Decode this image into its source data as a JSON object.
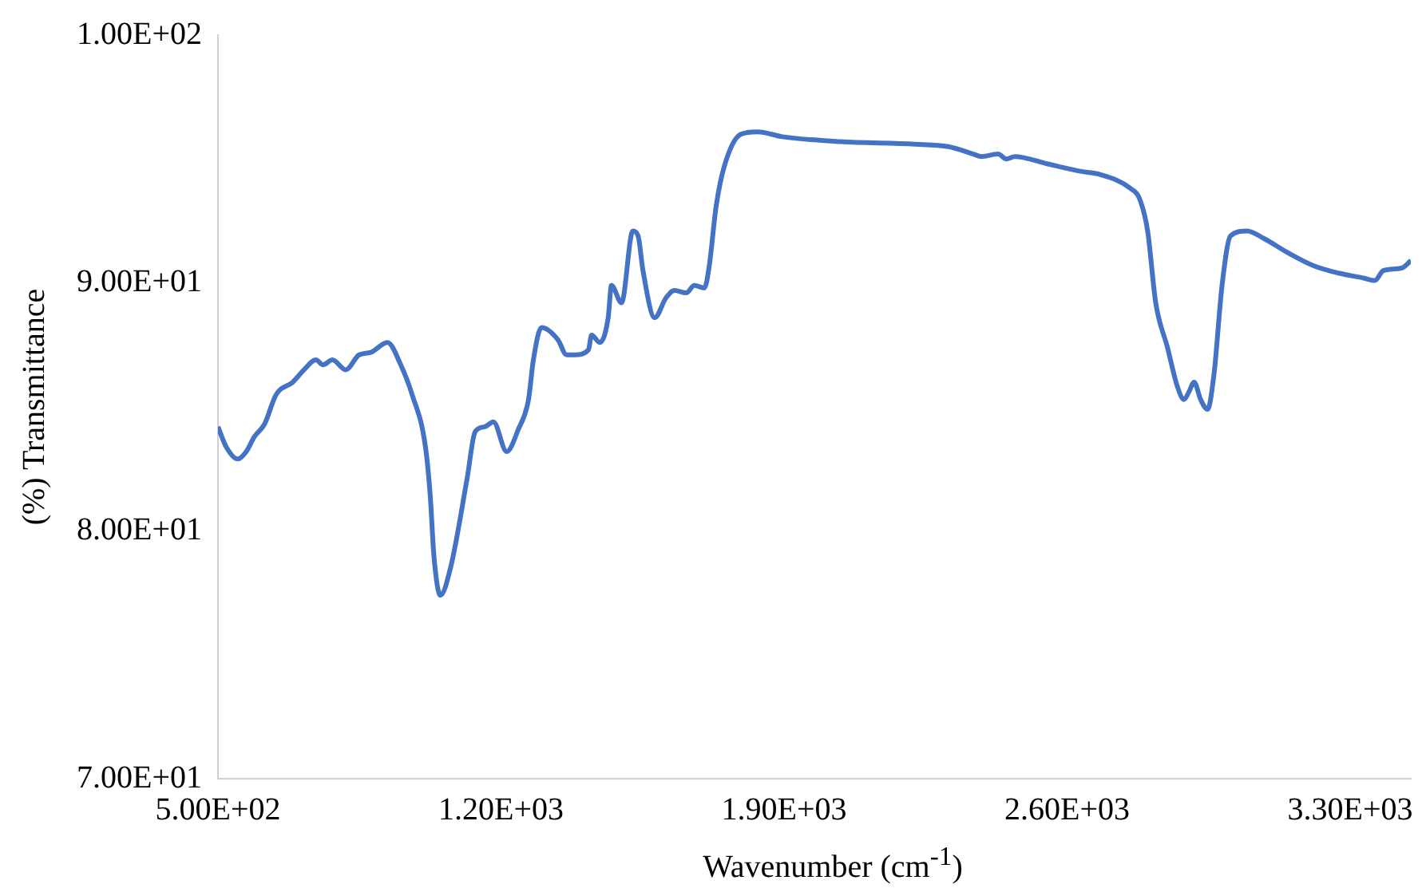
{
  "chart_data": {
    "type": "line",
    "xlabel": "Wavenumber (cm$^{-1}$)",
    "ylabel": "(%) Transmittance",
    "x": [
      500,
      520,
      549,
      570,
      590,
      615,
      644,
      685,
      713,
      742,
      760,
      783,
      816,
      849,
      878,
      919,
      952,
      980,
      1013,
      1025,
      1034,
      1050,
      1075,
      1116,
      1136,
      1160,
      1181,
      1214,
      1243,
      1268,
      1280,
      1300,
      1341,
      1362,
      1383,
      1416,
      1424,
      1444,
      1465,
      1473,
      1498,
      1526,
      1539,
      1551,
      1580,
      1608,
      1629,
      1658,
      1678,
      1703,
      1715,
      1732,
      1752,
      1793,
      1834,
      1896,
      2039,
      2224,
      2306,
      2368,
      2388,
      2429,
      2450,
      2470,
      2552,
      2635,
      2676,
      2758,
      2779,
      2799,
      2819,
      2848,
      2873,
      2889,
      2901,
      2914,
      2930,
      2947,
      2963,
      2983,
      3004,
      3045,
      3086,
      3148,
      3209,
      3271,
      3333,
      3361,
      3382,
      3427,
      3450
    ],
    "series": [
      {
        "color": "#4472c4",
        "values": [
          84.2,
          83.4,
          82.9,
          83.2,
          83.8,
          84.3,
          85.5,
          86.0,
          86.5,
          86.9,
          86.7,
          86.9,
          86.5,
          87.1,
          87.2,
          87.6,
          86.7,
          85.5,
          83.4,
          81.4,
          79.0,
          77.4,
          78.5,
          82.1,
          84.0,
          84.2,
          84.4,
          83.2,
          84.1,
          85.3,
          86.9,
          88.2,
          87.7,
          87.1,
          87.1,
          87.3,
          87.9,
          87.6,
          88.6,
          89.9,
          89.2,
          92.1,
          91.9,
          90.5,
          88.6,
          89.4,
          89.7,
          89.6,
          89.9,
          89.8,
          90.7,
          93.1,
          94.7,
          96.0,
          96.1,
          95.9,
          95.7,
          95.6,
          95.5,
          95.2,
          95.1,
          95.2,
          95.0,
          95.1,
          94.8,
          94.5,
          94.4,
          93.8,
          93.4,
          92.1,
          89.2,
          87.4,
          85.8,
          85.3,
          85.6,
          86.0,
          85.3,
          84.9,
          86.3,
          89.9,
          91.9,
          92.1,
          91.8,
          91.2,
          90.7,
          90.4,
          90.2,
          90.1,
          90.5,
          90.6,
          90.9
        ]
      }
    ],
    "xlim": [
      500,
      3450
    ],
    "xticks": [
      {
        "value": 500,
        "label": "5.00E+02"
      },
      {
        "value": 1200,
        "label": "1.20E+03"
      },
      {
        "value": 1900,
        "label": "1.90E+03"
      },
      {
        "value": 2600,
        "label": "2.60E+03"
      },
      {
        "value": 3300,
        "label": "3.30E+03"
      }
    ],
    "ylim": [
      70,
      100
    ],
    "yticks": [
      {
        "value": 70,
        "label": "7.00E+01"
      },
      {
        "value": 80,
        "label": "8.00E+01"
      },
      {
        "value": 90,
        "label": "9.00E+01"
      },
      {
        "value": 100,
        "label": "1.00E+02"
      }
    ],
    "grid": false,
    "legend": false,
    "marker": "none",
    "line_style": "solid"
  }
}
